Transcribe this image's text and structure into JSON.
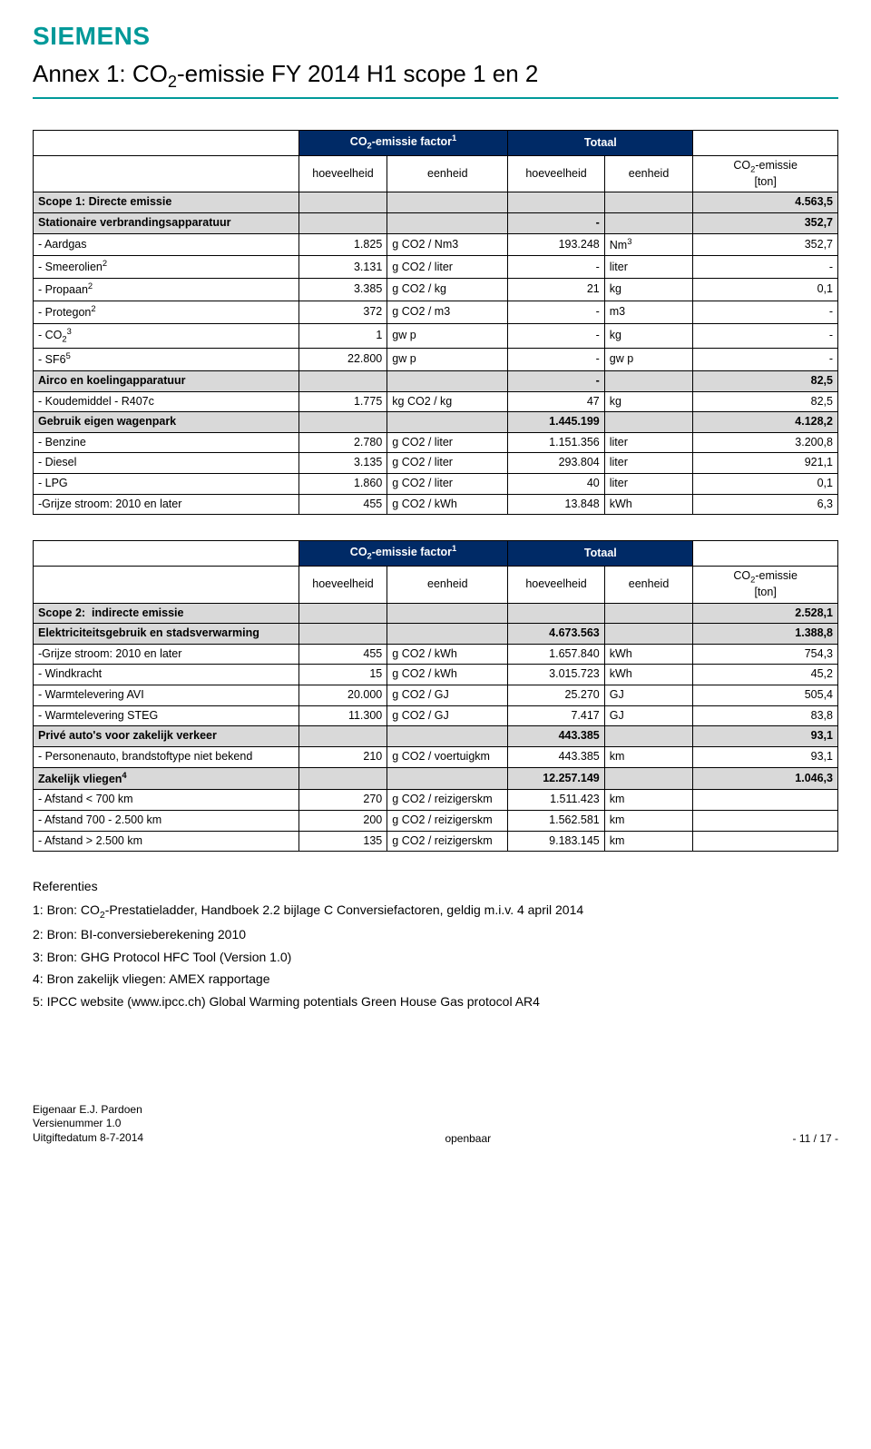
{
  "logo_text": "SIEMENS",
  "page_title_html": "Annex 1: CO<sub>2</sub>-emissie FY 2014 H1 scope 1 en 2",
  "header": {
    "factor_html": "CO<sub>2</sub>-emissie factor<sup>1</sup>",
    "totaal": "Totaal",
    "hoeveelheid": "hoeveelheid",
    "eenheid": "eenheid",
    "co2_emissie_html": "CO<sub>2</sub>-emissie<br>[ton]"
  },
  "table1_rows": [
    {
      "type": "section",
      "label": "Scope 1: Directe emissie",
      "f1": "",
      "f2": "",
      "t1": "",
      "t2": "",
      "e": "4.563,5"
    },
    {
      "type": "section",
      "label": "Stationaire verbrandingsapparatuur",
      "f1": "",
      "f2": "",
      "t1": "-",
      "t2": "",
      "e": "352,7"
    },
    {
      "type": "row",
      "label": "- Aardgas",
      "f1": "1.825",
      "f2": "g CO2 / Nm3",
      "t1": "193.248",
      "t2_html": "Nm<sup>3</sup>",
      "e": "352,7"
    },
    {
      "type": "row",
      "label_html": "- Smeerolien<sup>2</sup>",
      "f1": "3.131",
      "f2": "g CO2 / liter",
      "t1": "-",
      "t2": "liter",
      "e": "-"
    },
    {
      "type": "row",
      "label_html": "- Propaan<sup>2</sup>",
      "f1": "3.385",
      "f2": "g CO2 / kg",
      "t1": "21",
      "t2": "kg",
      "e": "0,1"
    },
    {
      "type": "row",
      "label_html": "- Protegon<sup>2</sup>",
      "f1": "372",
      "f2": "g CO2 / m3",
      "t1": "-",
      "t2": "m3",
      "e": "-"
    },
    {
      "type": "row",
      "label_html": "- CO<sub>2</sub><sup>3</sup>",
      "f1": "1",
      "f2": "gw p",
      "t1": "-",
      "t2": "kg",
      "e": "-"
    },
    {
      "type": "row",
      "label_html": "- SF6<sup>5</sup>",
      "f1": "22.800",
      "f2": "gw p",
      "t1": "-",
      "t2": "gw p",
      "e": "-"
    },
    {
      "type": "section",
      "label": "Airco en koelingapparatuur",
      "f1": "",
      "f2": "",
      "t1": "-",
      "t2": "",
      "e": "82,5"
    },
    {
      "type": "row",
      "label": "- Koudemiddel - R407c",
      "f1": "1.775",
      "f2": "kg CO2 / kg",
      "t1": "47",
      "t2": "kg",
      "e": "82,5"
    },
    {
      "type": "section",
      "label": "Gebruik eigen wagenpark",
      "f1": "",
      "f2": "",
      "t1": "1.445.199",
      "t2": "",
      "e": "4.128,2"
    },
    {
      "type": "row",
      "label": "- Benzine",
      "f1": "2.780",
      "f2": "g CO2 / liter",
      "t1": "1.151.356",
      "t2": "liter",
      "e": "3.200,8"
    },
    {
      "type": "row",
      "label": "- Diesel",
      "f1": "3.135",
      "f2": "g CO2 / liter",
      "t1": "293.804",
      "t2": "liter",
      "e": "921,1"
    },
    {
      "type": "row",
      "label": "- LPG",
      "f1": "1.860",
      "f2": "g CO2 / liter",
      "t1": "40",
      "t2": "liter",
      "e": "0,1"
    },
    {
      "type": "row",
      "label": "-Grijze stroom: 2010 en later",
      "f1": "455",
      "f2": "g CO2 / kWh",
      "t1": "13.848",
      "t2": "kWh",
      "e": "6,3"
    }
  ],
  "table2_rows": [
    {
      "type": "section",
      "label_html": "Scope 2:&nbsp;&nbsp;indirecte emissie",
      "f1": "",
      "f2": "",
      "t1": "",
      "t2": "",
      "e": "2.528,1"
    },
    {
      "type": "section",
      "label": "Elektriciteitsgebruik en stadsverwarming",
      "f1": "",
      "f2": "",
      "t1": "4.673.563",
      "t2": "",
      "e": "1.388,8"
    },
    {
      "type": "row",
      "label": "-Grijze stroom: 2010 en later",
      "f1": "455",
      "f2": "g CO2 / kWh",
      "t1": "1.657.840",
      "t2": "kWh",
      "e": "754,3"
    },
    {
      "type": "row",
      "label": "- Windkracht",
      "f1": "15",
      "f2": "g CO2 / kWh",
      "t1": "3.015.723",
      "t2": "kWh",
      "e": "45,2"
    },
    {
      "type": "row",
      "label": "- Warmtelevering AVI",
      "f1": "20.000",
      "f2": "g CO2 / GJ",
      "t1": "25.270",
      "t2": "GJ",
      "e": "505,4"
    },
    {
      "type": "row",
      "label": "- Warmtelevering STEG",
      "f1": "11.300",
      "f2": "g CO2 / GJ",
      "t1": "7.417",
      "t2": "GJ",
      "e": "83,8"
    },
    {
      "type": "section",
      "label": "Privé auto's voor zakelijk verkeer",
      "f1": "",
      "f2": "",
      "t1": "443.385",
      "t2": "",
      "e": "93,1"
    },
    {
      "type": "row",
      "label": "- Personenauto, brandstoftype niet bekend",
      "f1": "210",
      "f2": "g CO2 / voertuigkm",
      "t1": "443.385",
      "t2": "km",
      "e": "93,1"
    },
    {
      "type": "section",
      "label_html": "Zakelijk vliegen<sup>4</sup>",
      "f1": "",
      "f2": "",
      "t1": "12.257.149",
      "t2": "",
      "e": "1.046,3"
    },
    {
      "type": "row",
      "label": "- Afstand < 700 km",
      "f1": "270",
      "f2": "g CO2 / reizigerskm",
      "t1": "1.511.423",
      "t2": "km",
      "e": ""
    },
    {
      "type": "row",
      "label": "- Afstand 700 - 2.500 km",
      "f1": "200",
      "f2": "g CO2 / reizigerskm",
      "t1": "1.562.581",
      "t2": "km",
      "e": ""
    },
    {
      "type": "row",
      "label": "- Afstand > 2.500 km",
      "f1": "135",
      "f2": "g CO2 / reizigerskm",
      "t1": "9.183.145",
      "t2": "km",
      "e": ""
    }
  ],
  "refs": {
    "heading": "Referenties",
    "items": [
      "1: Bron: CO<sub>2</sub>-Prestatieladder, Handboek 2.2 bijlage C Conversiefactoren, geldig m.i.v. 4 april 2014",
      "2: Bron: BI-conversieberekening 2010",
      "3: Bron: GHG Protocol HFC Tool (Version 1.0)",
      "4: Bron zakelijk vliegen: AMEX rapportage",
      "5: IPCC website (www.ipcc.ch) Global Warming potentials Green House Gas protocol AR4"
    ]
  },
  "footer": {
    "owner": "Eigenaar E.J. Pardoen",
    "version": "Versienummer 1.0",
    "date": "Uitgiftedatum 8-7-2014",
    "center": "openbaar",
    "right": "- 11 / 17 -"
  }
}
